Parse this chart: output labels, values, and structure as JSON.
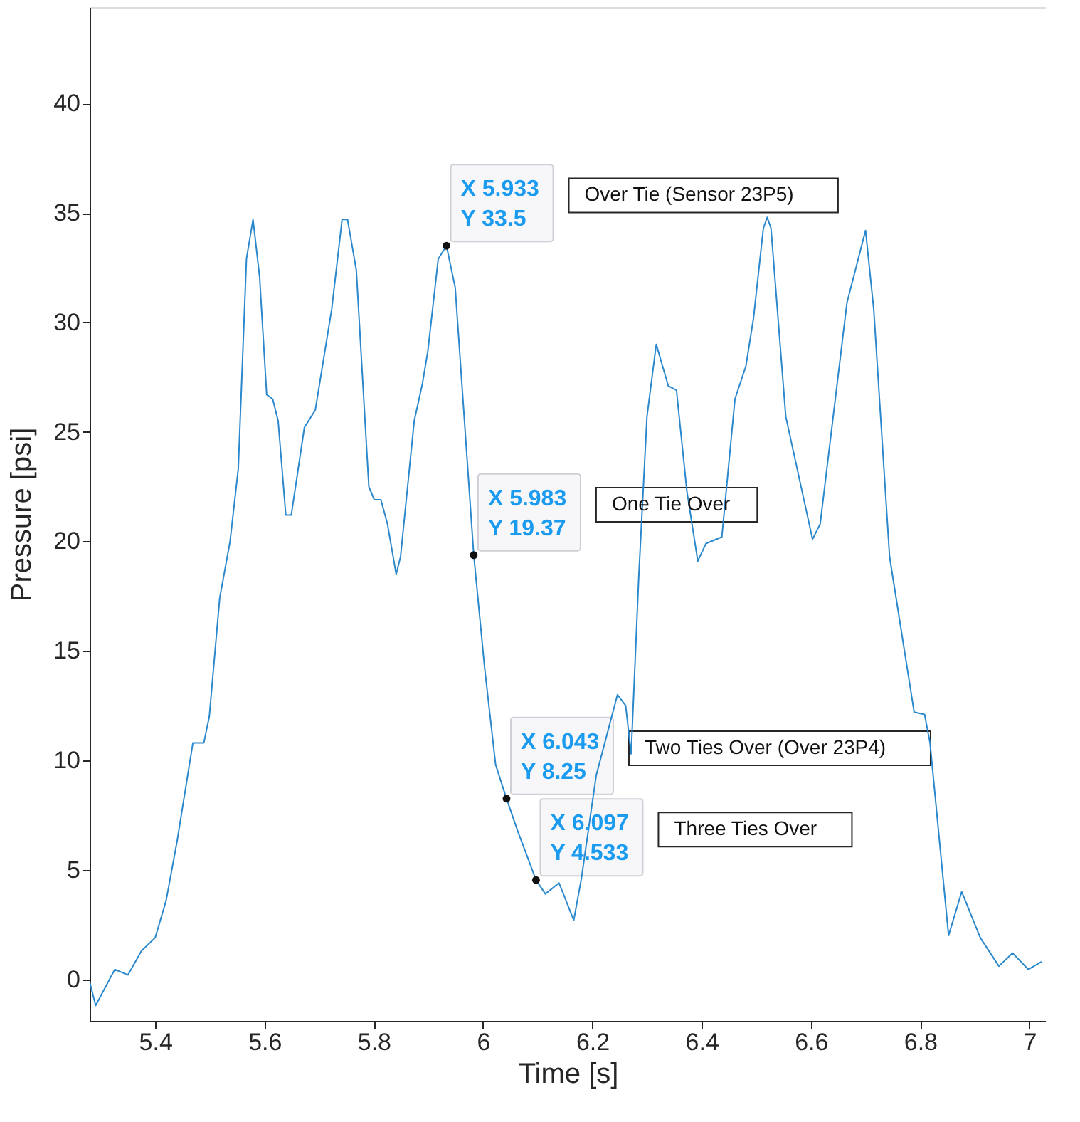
{
  "chart_data": {
    "type": "line",
    "xlabel": "Time [s]",
    "ylabel": "Pressure [psi]",
    "xlim": [
      5.28,
      7.03
    ],
    "ylim": [
      -1.9,
      44.4
    ],
    "xticks": [
      5.4,
      5.6,
      5.8,
      6,
      6.2,
      6.4,
      6.6,
      6.8,
      7
    ],
    "yticks": [
      0,
      5,
      10,
      15,
      20,
      25,
      30,
      35,
      40
    ],
    "x": [
      5.28,
      5.291,
      5.326,
      5.35,
      5.375,
      5.4,
      5.42,
      5.44,
      5.469,
      5.489,
      5.499,
      5.518,
      5.537,
      5.552,
      5.567,
      5.579,
      5.591,
      5.604,
      5.615,
      5.625,
      5.639,
      5.649,
      5.673,
      5.693,
      5.723,
      5.742,
      5.752,
      5.768,
      5.791,
      5.801,
      5.813,
      5.825,
      5.841,
      5.849,
      5.874,
      5.889,
      5.899,
      5.918,
      5.933,
      5.949,
      5.983,
      6.003,
      6.023,
      6.043,
      6.063,
      6.097,
      6.114,
      6.139,
      6.166,
      6.18,
      6.207,
      6.246,
      6.261,
      6.271,
      6.285,
      6.3,
      6.317,
      6.339,
      6.354,
      6.373,
      6.393,
      6.408,
      6.437,
      6.461,
      6.481,
      6.495,
      6.513,
      6.52,
      6.527,
      6.554,
      6.603,
      6.617,
      6.666,
      6.7,
      6.715,
      6.744,
      6.789,
      6.808,
      6.818,
      6.852,
      6.876,
      6.91,
      6.944,
      6.969,
      6.998,
      7.022
    ],
    "series": [
      {
        "color": "#2b88cc",
        "values": [
          -0.1,
          -1.2,
          0.45,
          0.2,
          1.3,
          1.9,
          3.6,
          6.3,
          10.8,
          10.8,
          12.0,
          17.4,
          20.0,
          23.3,
          32.9,
          34.7,
          32.1,
          26.7,
          26.5,
          25.5,
          21.2,
          21.2,
          25.2,
          26.0,
          30.6,
          34.7,
          34.7,
          32.4,
          22.5,
          21.9,
          21.9,
          20.8,
          18.5,
          19.3,
          25.5,
          27.2,
          28.7,
          32.9,
          33.5,
          31.6,
          19.37,
          14.2,
          9.8,
          8.25,
          6.8,
          4.533,
          3.9,
          4.4,
          2.7,
          4.6,
          9.3,
          13.0,
          12.5,
          10.3,
          18.4,
          25.7,
          29.0,
          27.1,
          26.9,
          22.3,
          19.1,
          19.9,
          20.2,
          26.5,
          28.0,
          30.2,
          34.3,
          34.8,
          34.3,
          25.7,
          20.1,
          20.8,
          30.9,
          34.2,
          30.6,
          19.3,
          12.2,
          12.1,
          10.8,
          2.0,
          4.0,
          1.9,
          0.6,
          1.2,
          0.45,
          0.8
        ]
      }
    ],
    "annotations": [
      {
        "text": "X 5.933\nY 33.5",
        "x": 5.933,
        "y": 33.5
      },
      {
        "text": "X 5.983\nY 19.37",
        "x": 5.983,
        "y": 19.37
      },
      {
        "text": "X 6.043\nY 8.25",
        "x": 6.043,
        "y": 8.25
      },
      {
        "text": "X 6.097\nY 4.533",
        "x": 6.097,
        "y": 4.533
      },
      "Over Tie (Sensor 23P5)",
      "One Tie Over",
      "Two Ties Over (Over 23P4)",
      "Three Ties Over"
    ]
  }
}
